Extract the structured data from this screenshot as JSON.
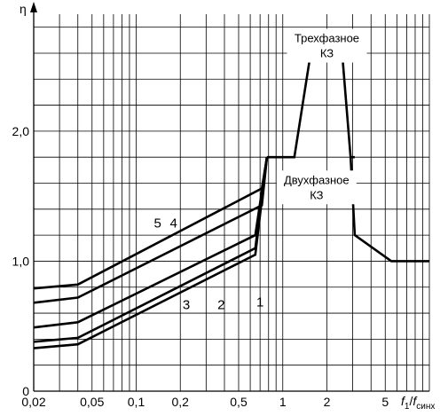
{
  "chart_data": {
    "type": "line",
    "ylabel": "η",
    "xlabel_main": "f",
    "xlabel_sub1": "1",
    "xlabel_slash": "/",
    "xlabel_main2": "f",
    "xlabel_sub2": "синх",
    "x_scale": "log",
    "xlim": [
      0.02,
      10
    ],
    "ylim": [
      0,
      2.9
    ],
    "grid": true,
    "x_ticks": [
      {
        "value": 0.02,
        "label": "0,02"
      },
      {
        "value": 0.05,
        "label": "0,05"
      },
      {
        "value": 0.1,
        "label": "0,1"
      },
      {
        "value": 0.2,
        "label": "0,2"
      },
      {
        "value": 0.5,
        "label": "0,5"
      },
      {
        "value": 1,
        "label": "1"
      },
      {
        "value": 2,
        "label": "2"
      },
      {
        "value": 5,
        "label": "5"
      }
    ],
    "y_ticks": [
      {
        "value": 0,
        "label": "0"
      },
      {
        "value": 1.0,
        "label": "1,0"
      },
      {
        "value": 2.0,
        "label": "2,0"
      }
    ],
    "x_grid": [
      0.02,
      0.03,
      0.04,
      0.05,
      0.06,
      0.07,
      0.08,
      0.09,
      0.1,
      0.2,
      0.3,
      0.4,
      0.5,
      0.6,
      0.7,
      0.8,
      0.9,
      1,
      2,
      3,
      4,
      5,
      6,
      7,
      8,
      9,
      10
    ],
    "y_grid": [
      0,
      0.2,
      0.4,
      0.6,
      0.8,
      1.0,
      1.2,
      1.4,
      1.6,
      1.8,
      2.0,
      2.2,
      2.4,
      2.6,
      2.8
    ],
    "series": [
      {
        "name": "1",
        "points": [
          [
            0.02,
            0.33
          ],
          [
            0.04,
            0.36
          ],
          [
            0.65,
            1.05
          ],
          [
            0.78,
            1.8
          ]
        ],
        "label_at": [
          0.7,
          0.65
        ]
      },
      {
        "name": "2",
        "points": [
          [
            0.02,
            0.38
          ],
          [
            0.04,
            0.41
          ],
          [
            0.65,
            1.1
          ],
          [
            0.78,
            1.8
          ]
        ],
        "label_at": [
          0.38,
          0.63
        ]
      },
      {
        "name": "3",
        "points": [
          [
            0.02,
            0.49
          ],
          [
            0.04,
            0.53
          ],
          [
            0.65,
            1.2
          ],
          [
            0.78,
            1.8
          ]
        ],
        "label_at": [
          0.22,
          0.63
        ]
      },
      {
        "name": "4",
        "points": [
          [
            0.02,
            0.68
          ],
          [
            0.04,
            0.72
          ],
          [
            0.72,
            1.43
          ],
          [
            0.78,
            1.8
          ]
        ],
        "label_at": [
          0.18,
          1.26
        ]
      },
      {
        "name": "5",
        "points": [
          [
            0.02,
            0.79
          ],
          [
            0.04,
            0.82
          ],
          [
            0.72,
            1.56
          ],
          [
            0.78,
            1.8
          ]
        ],
        "label_at": [
          0.14,
          1.26
        ]
      }
    ],
    "envelope": {
      "points": [
        [
          0.78,
          1.8
        ],
        [
          1.2,
          1.8
        ],
        [
          1.6,
          2.7
        ],
        [
          2.5,
          2.7
        ],
        [
          2.9,
          1.8
        ],
        [
          3.1,
          1.2
        ],
        [
          5.5,
          1.0
        ],
        [
          10,
          1.0
        ]
      ],
      "inner_points": [
        [
          2.9,
          1.8
        ],
        [
          3.1,
          1.8
        ]
      ]
    },
    "annotations": [
      {
        "lines": [
          "Трехфазное",
          "КЗ"
        ],
        "at": [
          2.0,
          2.76
        ]
      },
      {
        "lines": [
          "Двухфазное",
          "КЗ"
        ],
        "at": [
          1.7,
          1.67
        ]
      }
    ]
  }
}
